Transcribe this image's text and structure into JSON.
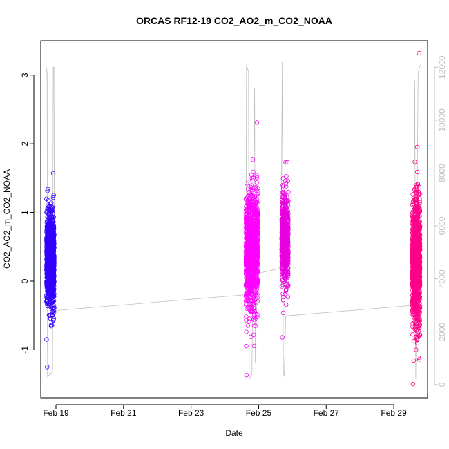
{
  "chart_data": {
    "type": "scatter",
    "title": "ORCAS RF12-19 CO2_AO2_m_CO2_NOAA",
    "xlabel": "Date",
    "ylabel": "CO2_AO2_m_CO2_NOAA",
    "x_ticks": [
      "Feb 19",
      "Feb 21",
      "Feb 23",
      "Feb 25",
      "Feb 27",
      "Feb 29"
    ],
    "x_tick_days": [
      19,
      21,
      23,
      25,
      27,
      29
    ],
    "xlim_days": [
      18.55,
      30.0
    ],
    "ylim": [
      -1.7,
      3.5
    ],
    "y_ticks": [
      -1,
      0,
      1,
      2,
      3
    ],
    "y2_ticks": [
      0,
      2000,
      4000,
      6000,
      8000,
      10000,
      12000
    ],
    "y2_lim": [
      -500,
      13000
    ],
    "y2_color": "#c0c0c0",
    "grid": false,
    "series": [
      {
        "color": "#3300ff",
        "x_range_days": [
          18.72,
          18.95
        ],
        "y_mean": 0.3,
        "y_sd": 0.33,
        "y_min": -1.25,
        "y_max": 1.57,
        "count": 1200
      },
      {
        "color": "#ff00ff",
        "x_range_days": [
          24.62,
          24.98
        ],
        "y_mean": 0.45,
        "y_sd": 0.42,
        "y_min": -1.37,
        "y_max": 2.31,
        "count": 1100
      },
      {
        "color": "#e800e0",
        "x_range_days": [
          25.68,
          25.88
        ],
        "y_mean": 0.62,
        "y_sd": 0.32,
        "y_min": -0.82,
        "y_max": 1.73,
        "count": 700
      },
      {
        "color": "#ff0088",
        "x_range_days": [
          29.55,
          29.78
        ],
        "y_mean": 0.25,
        "y_sd": 0.45,
        "y_min": -1.5,
        "y_max": 3.32,
        "count": 1300
      }
    ],
    "altitude_series": {
      "color": "#bebebe",
      "points": [
        [
          18.7,
          200
        ],
        [
          18.71,
          12000
        ],
        [
          18.74,
          11800
        ],
        [
          18.75,
          300
        ],
        [
          18.9,
          500
        ],
        [
          18.92,
          12000
        ],
        [
          18.94,
          12000
        ],
        [
          18.96,
          2800
        ],
        [
          24.62,
          3400
        ],
        [
          24.64,
          12100
        ],
        [
          24.7,
          11800
        ],
        [
          24.72,
          200
        ],
        [
          24.8,
          400
        ],
        [
          24.88,
          11200
        ],
        [
          24.9,
          800
        ],
        [
          24.96,
          4200
        ],
        [
          25.66,
          4400
        ],
        [
          25.7,
          12200
        ],
        [
          25.73,
          500
        ],
        [
          25.76,
          300
        ],
        [
          25.8,
          2600
        ],
        [
          29.58,
          3000
        ],
        [
          29.62,
          11500
        ],
        [
          29.65,
          200
        ],
        [
          29.72,
          11800
        ],
        [
          29.76,
          12000
        ],
        [
          29.8,
          12100
        ]
      ]
    }
  }
}
